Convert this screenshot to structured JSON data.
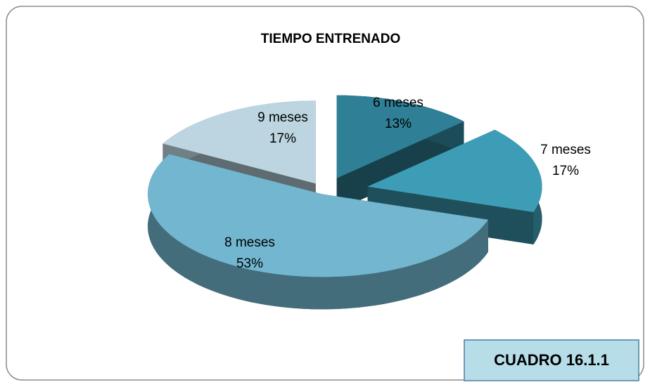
{
  "chart_data": {
    "type": "pie",
    "title": "TIEMPO ENTRENADO",
    "categories": [
      "6 meses",
      "7 meses",
      "8 meses",
      "9 meses"
    ],
    "values": [
      13,
      17,
      53,
      17
    ],
    "value_labels": [
      "13%",
      "17%",
      "53%",
      "17%"
    ],
    "colors": [
      "#2f7f96",
      "#3e9db6",
      "#72b6cf",
      "#bcd5e0"
    ],
    "annotation": "CUADRO 16.1.1"
  }
}
